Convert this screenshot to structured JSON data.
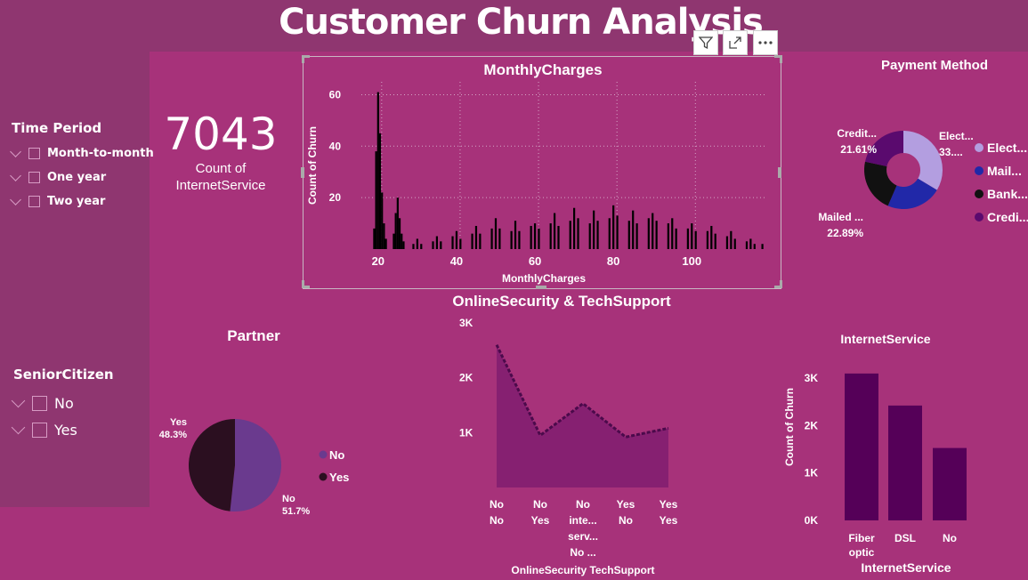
{
  "page": {
    "title": "Customer Churn Analysis"
  },
  "header_icons": [
    "filter-icon",
    "focus-mode-icon",
    "more-options-icon"
  ],
  "slicers": {
    "time_period": {
      "title": "Time Period",
      "items": [
        "Month-to-month",
        "One year",
        "Two year"
      ]
    },
    "senior_citizen": {
      "title": "SeniorCitizen",
      "items": [
        "No",
        "Yes"
      ]
    }
  },
  "kpi": {
    "value": "7043",
    "label_line1": "Count of",
    "label_line2": "InternetService"
  },
  "colors": {
    "background": "#a7327a",
    "panel": "#8f3670",
    "histogram": "#000000",
    "area": "#862071",
    "area_line": "#4b0a4b",
    "bars": "#550058",
    "pie_no": "#6a3a8e",
    "pie_yes": "#2b0f20",
    "donut": [
      "#b39ee0",
      "#2128a8",
      "#111111",
      "#5a0a6e"
    ]
  },
  "chart_data": [
    {
      "id": "monthly_charges",
      "type": "bar",
      "title": "MonthlyCharges",
      "xlabel": "MonthlyCharges",
      "ylabel": "Count of Churn",
      "xlim": [
        18,
        119
      ],
      "ylim": [
        0,
        65
      ],
      "xticks": [
        20,
        40,
        60,
        80,
        100
      ],
      "yticks": [
        20,
        40,
        60
      ],
      "grid": true,
      "x": [
        19,
        19.5,
        20,
        20.5,
        21,
        21.5,
        22,
        24,
        24.5,
        25,
        25.5,
        26,
        26.5,
        29,
        30,
        31,
        34,
        35,
        36,
        39,
        40,
        41,
        44,
        45,
        46,
        49,
        50,
        51,
        54,
        55,
        56,
        59,
        60,
        61,
        64,
        65,
        66,
        69,
        70,
        71,
        74,
        75,
        76,
        79,
        80,
        81,
        84,
        85,
        86,
        89,
        90,
        91,
        94,
        95,
        96,
        99,
        100,
        101,
        104,
        105,
        106,
        109,
        110,
        111,
        114,
        115,
        116,
        118
      ],
      "values": [
        8,
        38,
        61,
        45,
        22,
        10,
        4,
        6,
        14,
        20,
        12,
        6,
        3,
        2,
        4,
        2,
        3,
        5,
        3,
        5,
        7,
        4,
        6,
        9,
        6,
        8,
        12,
        8,
        7,
        11,
        7,
        9,
        10,
        8,
        10,
        14,
        9,
        11,
        16,
        12,
        10,
        15,
        11,
        12,
        17,
        13,
        11,
        15,
        10,
        12,
        14,
        11,
        10,
        12,
        8,
        8,
        10,
        7,
        7,
        9,
        6,
        5,
        7,
        4,
        3,
        4,
        2,
        2
      ]
    },
    {
      "id": "payment_method",
      "type": "pie",
      "title": "Payment Method",
      "donut": true,
      "categories": [
        "Electronic check",
        "Mailed check",
        "Bank transfer (automatic)",
        "Credit card (automatic)"
      ],
      "legend_labels": [
        "Elect...",
        "Mail...",
        "Bank...",
        "Credi..."
      ],
      "values": [
        33.58,
        22.89,
        21.92,
        21.61
      ],
      "data_labels": [
        [
          "Elect...",
          "33...."
        ],
        [
          "Mailed ...",
          "22.89%"
        ],
        null,
        [
          "Credit...",
          "21.61%"
        ]
      ],
      "legend": "right"
    },
    {
      "id": "partner",
      "type": "pie",
      "title": "Partner",
      "categories": [
        "No",
        "Yes"
      ],
      "values": [
        51.7,
        48.3
      ],
      "data_labels": [
        [
          "No",
          "51.7%"
        ],
        [
          "Yes",
          "48.3%"
        ]
      ],
      "legend": "right"
    },
    {
      "id": "online_security_tech_support",
      "type": "area",
      "title": "OnlineSecurity & TechSupport",
      "xlabel": "OnlineSecurity TechSupport",
      "categories": [
        [
          "No",
          "No"
        ],
        [
          "No",
          "Yes"
        ],
        [
          "No",
          "inte...",
          "serv...",
          "No ..."
        ],
        [
          "Yes",
          "No"
        ],
        [
          "Yes",
          "Yes"
        ]
      ],
      "values": [
        2600,
        950,
        1530,
        920,
        1080
      ],
      "ylim": [
        0,
        3000
      ],
      "yticks": [
        1000,
        2000,
        3000
      ],
      "ytick_labels": [
        "1K",
        "2K",
        "3K"
      ]
    },
    {
      "id": "internet_service",
      "type": "bar",
      "title": "InternetService",
      "xlabel": "InternetService",
      "ylabel": "Count of Churn",
      "categories": [
        [
          "Fiber",
          "optic"
        ],
        [
          "DSL"
        ],
        [
          "No"
        ]
      ],
      "values": [
        3096,
        2421,
        1526
      ],
      "ylim": [
        0,
        3300
      ],
      "yticks": [
        0,
        1000,
        2000,
        3000
      ],
      "ytick_labels": [
        "0K",
        "1K",
        "2K",
        "3K"
      ]
    }
  ]
}
